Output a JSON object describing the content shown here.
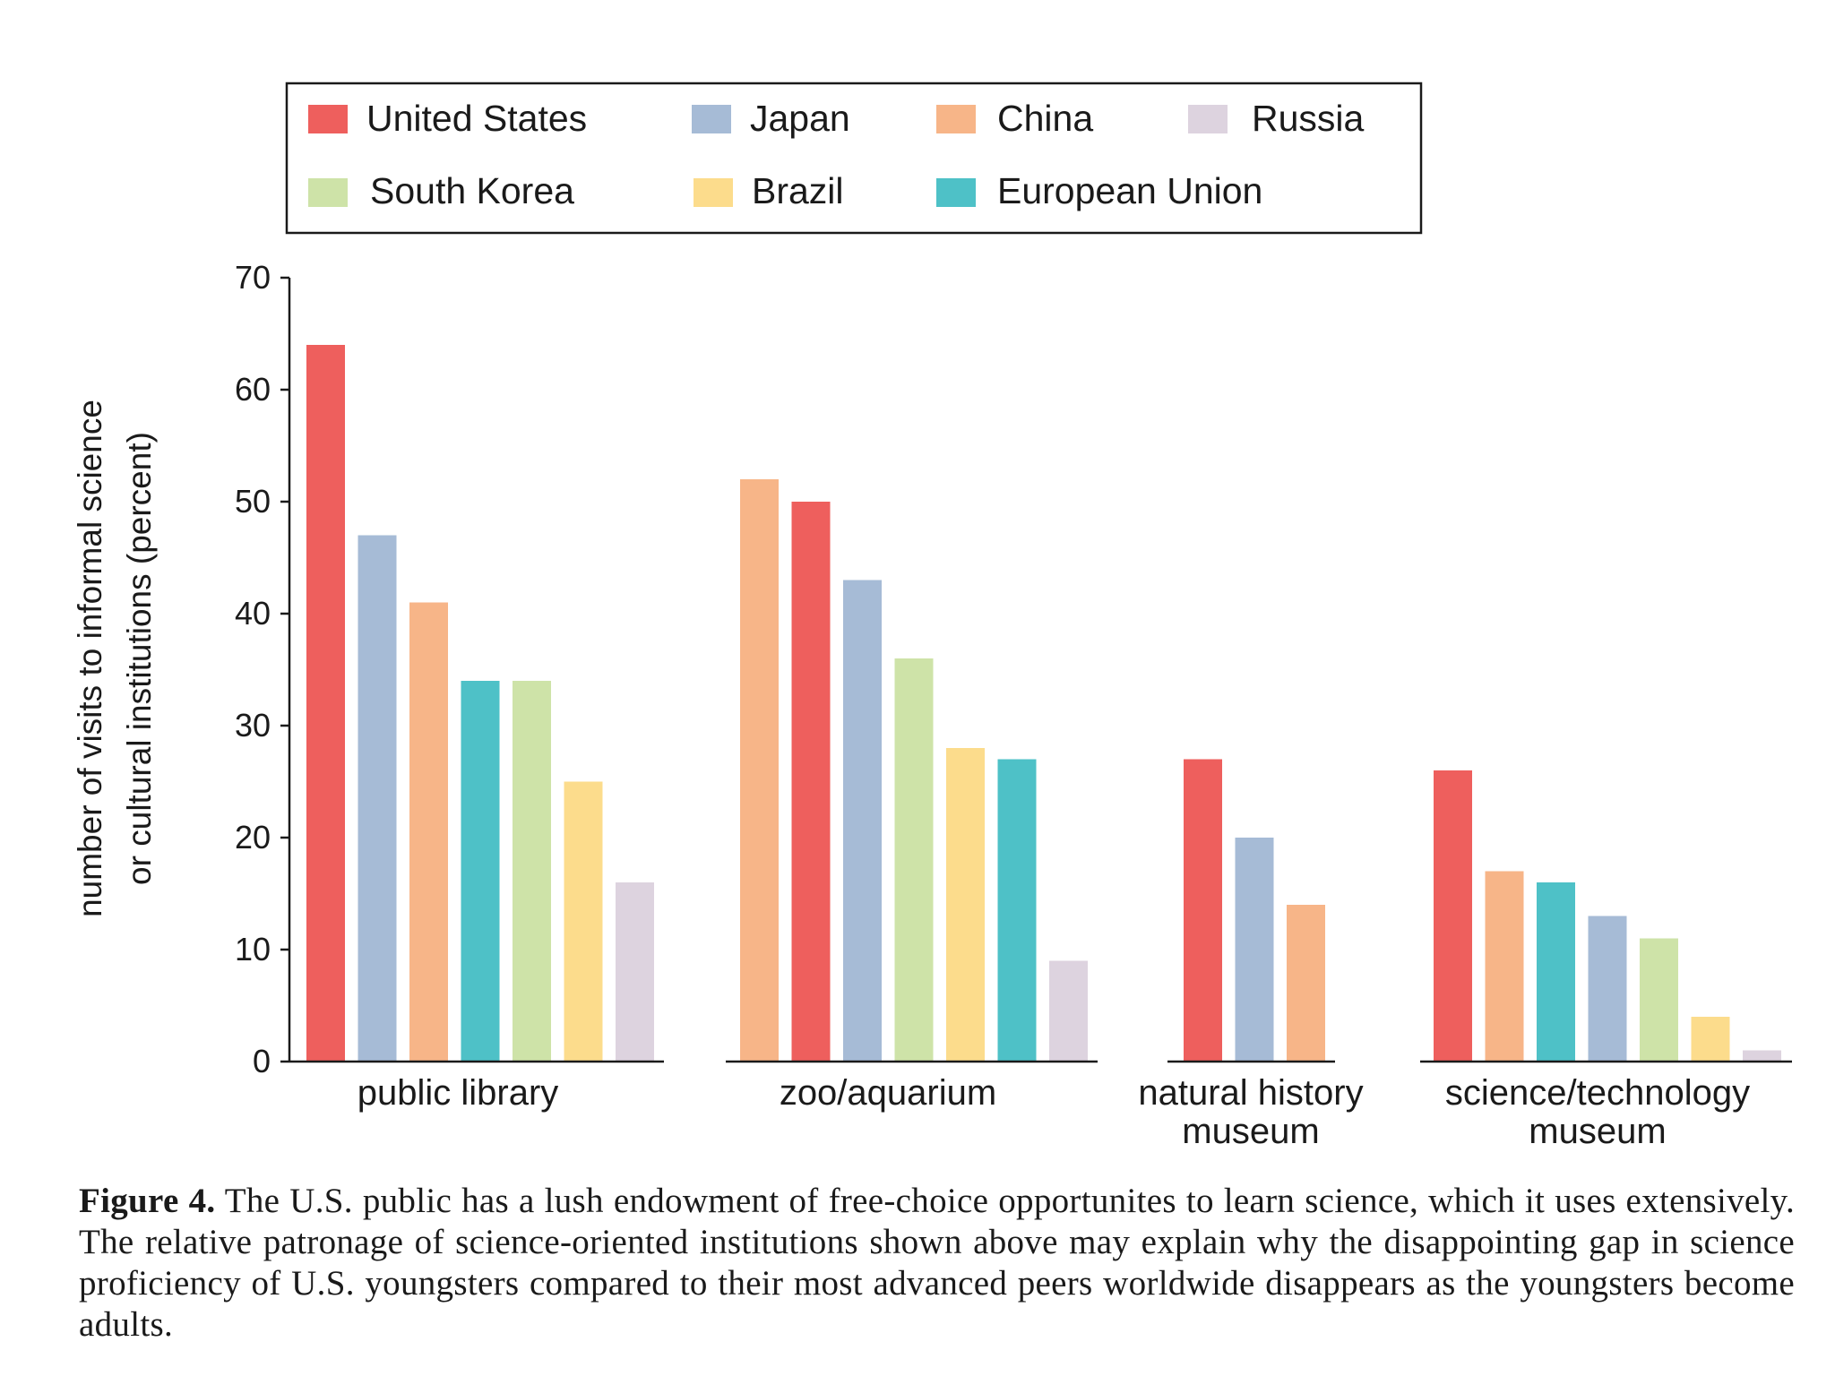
{
  "chart_data": {
    "type": "bar",
    "ylabel": [
      "number of visits to informal science",
      "or cultural institutions (percent)"
    ],
    "ylim": [
      0,
      70
    ],
    "yticks": [
      0,
      10,
      20,
      30,
      40,
      50,
      60,
      70
    ],
    "legend": [
      {
        "name": "United States",
        "color": "#ee5f5d"
      },
      {
        "name": "Japan",
        "color": "#a6bbd6"
      },
      {
        "name": "China",
        "color": "#f7b588"
      },
      {
        "name": "Russia",
        "color": "#ddd3df"
      },
      {
        "name": "South Korea",
        "color": "#cee3a8"
      },
      {
        "name": "Brazil",
        "color": "#fcdc8c"
      },
      {
        "name": "European Union",
        "color": "#4ec1c7"
      }
    ],
    "groups": [
      {
        "label": [
          "public library"
        ],
        "bars": [
          {
            "country": "United States",
            "value": 64
          },
          {
            "country": "Japan",
            "value": 47
          },
          {
            "country": "China",
            "value": 41
          },
          {
            "country": "European Union",
            "value": 34
          },
          {
            "country": "South Korea",
            "value": 34
          },
          {
            "country": "Brazil",
            "value": 25
          },
          {
            "country": "Russia",
            "value": 16
          }
        ]
      },
      {
        "label": [
          "zoo/aquarium"
        ],
        "bars": [
          {
            "country": "China",
            "value": 52
          },
          {
            "country": "United States",
            "value": 50
          },
          {
            "country": "Japan",
            "value": 43
          },
          {
            "country": "South Korea",
            "value": 36
          },
          {
            "country": "Brazil",
            "value": 28
          },
          {
            "country": "European Union",
            "value": 27
          },
          {
            "country": "Russia",
            "value": 9
          }
        ]
      },
      {
        "label": [
          "natural history",
          "museum"
        ],
        "bars": [
          {
            "country": "United States",
            "value": 27
          },
          {
            "country": "Japan",
            "value": 20
          },
          {
            "country": "China",
            "value": 14
          }
        ]
      },
      {
        "label": [
          "science/technology",
          "museum"
        ],
        "bars": [
          {
            "country": "United States",
            "value": 26
          },
          {
            "country": "China",
            "value": 17
          },
          {
            "country": "European Union",
            "value": 16
          },
          {
            "country": "Japan",
            "value": 13
          },
          {
            "country": "South Korea",
            "value": 11
          },
          {
            "country": "Brazil",
            "value": 4
          },
          {
            "country": "Russia",
            "value": 1
          }
        ]
      }
    ]
  },
  "caption": {
    "label": "Figure 4.",
    "text": "The U.S. public has a lush endowment of free-choice opportunites to learn science, which it uses extensively. The relative patronage of science-oriented institutions shown above may explain why the disappointing gap in science proficiency of U.S. youngsters compared to their most advanced peers worldwide disappears as the youngsters become adults."
  }
}
